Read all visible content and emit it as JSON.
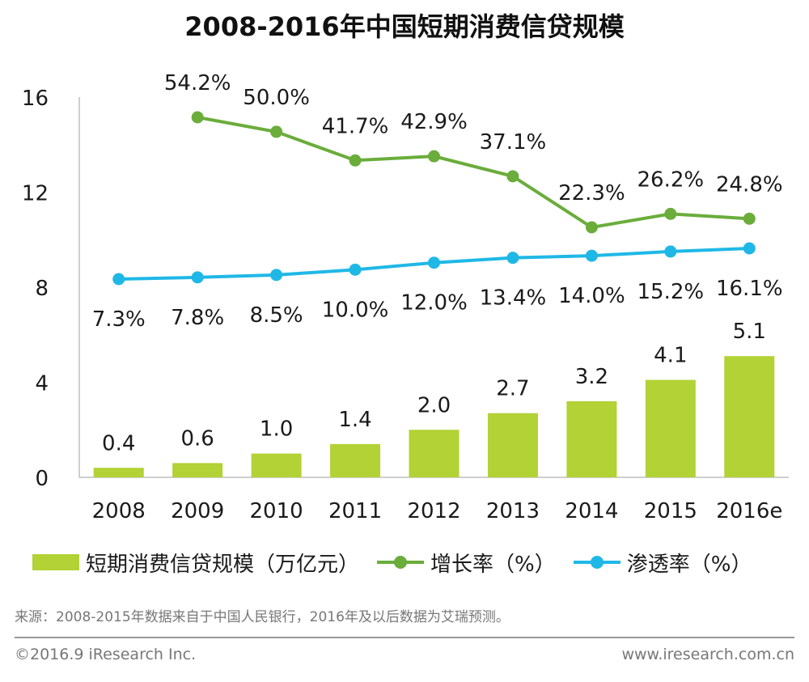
{
  "chart_data": {
    "type": "bar",
    "title": "2008-2016年中国短期消费信贷规模",
    "categories": [
      "2008",
      "2009",
      "2010",
      "2011",
      "2012",
      "2013",
      "2014",
      "2015",
      "2016e"
    ],
    "ylim": [
      0,
      16
    ],
    "yticks": [
      "0",
      "4",
      "8",
      "12",
      "16"
    ],
    "series": [
      {
        "name": "短期消费信贷规模（万亿元）",
        "kind": "bar",
        "color": "#b2d235",
        "values": [
          0.4,
          0.6,
          1.0,
          1.4,
          2.0,
          2.7,
          3.2,
          4.1,
          5.1
        ],
        "labels": [
          "0.4",
          "0.6",
          "1.0",
          "1.4",
          "2.0",
          "2.7",
          "3.2",
          "4.1",
          "5.1"
        ]
      },
      {
        "name": "增长率（%）",
        "kind": "line",
        "color": "#6aad3b",
        "values": [
          null,
          54.2,
          50.0,
          41.7,
          42.9,
          37.1,
          22.3,
          26.2,
          24.8
        ],
        "labels": [
          "",
          "54.2%",
          "50.0%",
          "41.7%",
          "42.9%",
          "37.1%",
          "22.3%",
          "26.2%",
          "24.8%"
        ]
      },
      {
        "name": "渗透率（%）",
        "kind": "line",
        "color": "#1fb8e6",
        "values": [
          7.3,
          7.8,
          8.5,
          10.0,
          12.0,
          13.4,
          14.0,
          15.2,
          16.1
        ],
        "labels": [
          "7.3%",
          "7.8%",
          "8.5%",
          "10.0%",
          "12.0%",
          "13.4%",
          "14.0%",
          "15.2%",
          "16.1%"
        ]
      }
    ]
  },
  "source": "来源：2008-2015年数据来自于中国人民银行，2016年及以后数据为艾瑞预测。",
  "footer": {
    "copyright": "©2016.9 iResearch Inc.",
    "website": "www.iresearch.com.cn"
  }
}
